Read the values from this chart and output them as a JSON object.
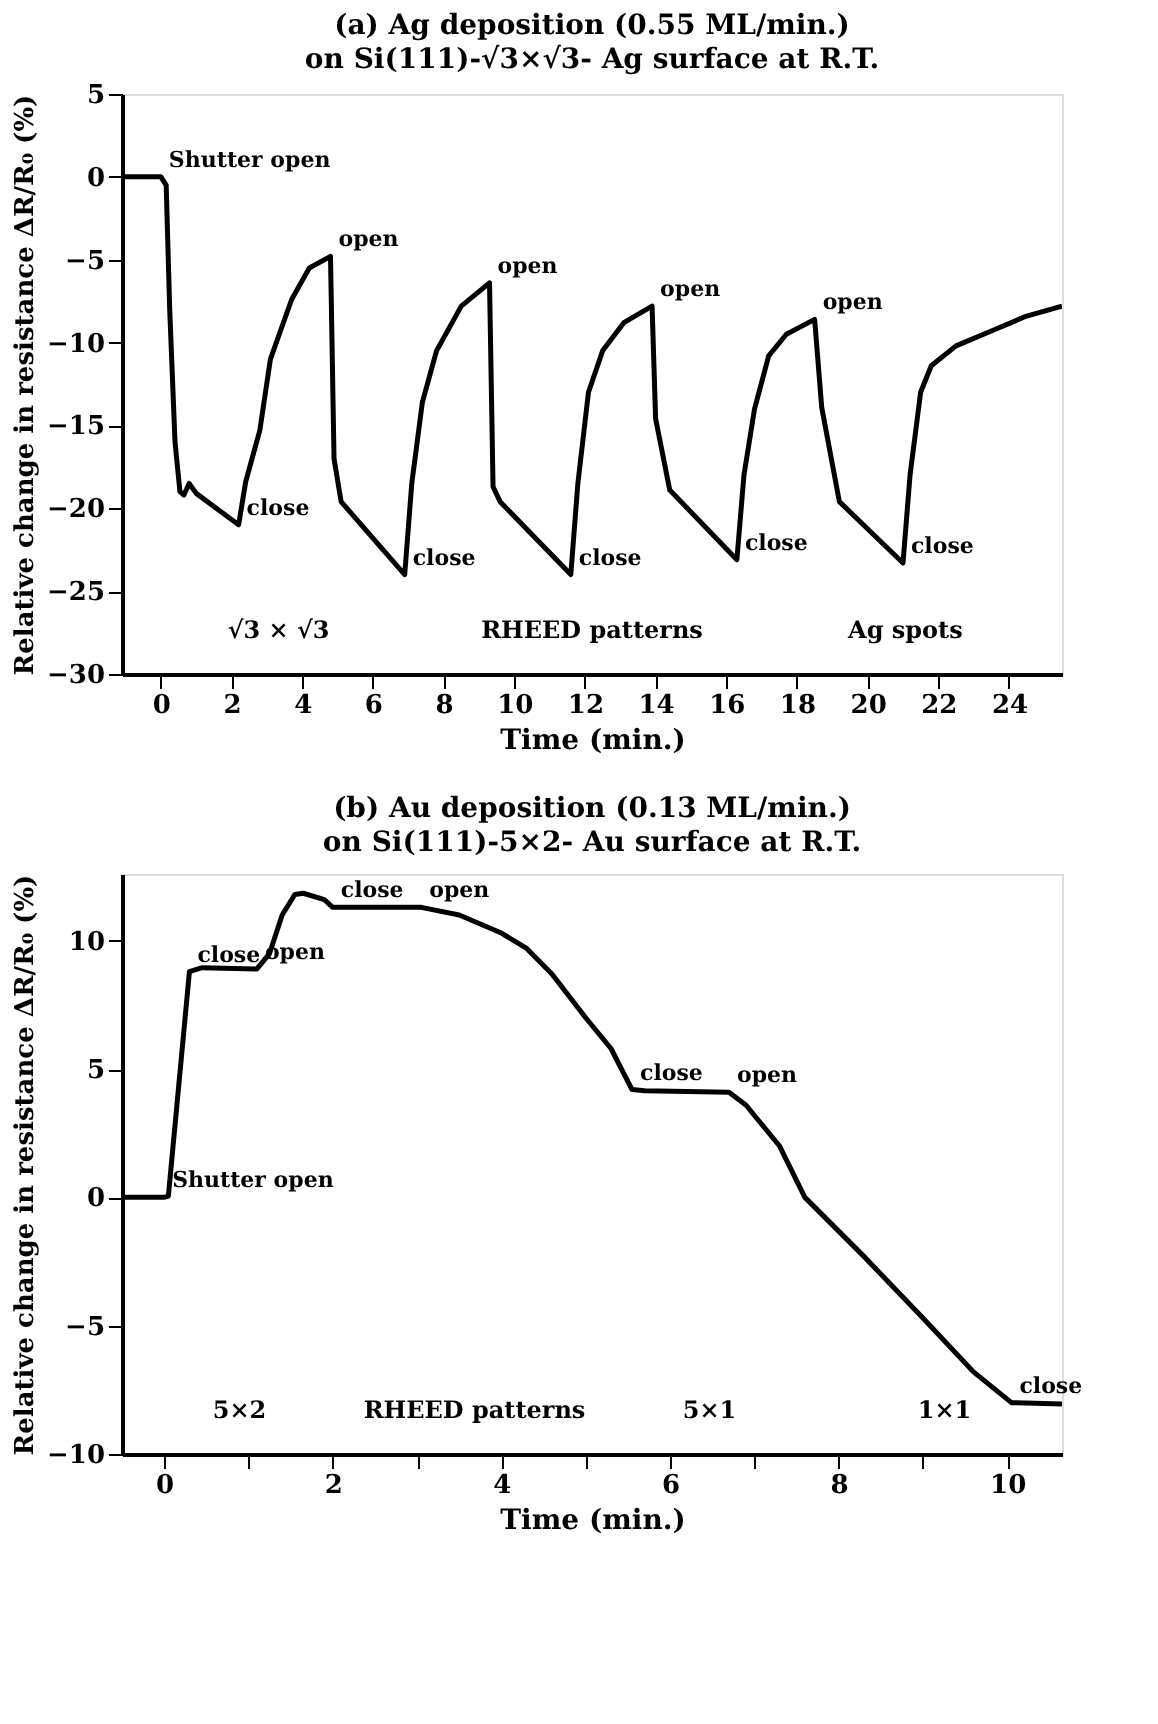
{
  "chart_data": [
    {
      "type": "line",
      "title": "(a) Ag deposition (0.55 ML/min.)",
      "subtitle": "on Si(111)-√3×√3- Ag surface at R.T.",
      "xlabel": "Time (min.)",
      "ylabel": "Relative change in resistance ΔR/R₀   (%)",
      "xlim": [
        -1.1,
        25.5
      ],
      "ylim": [
        -30,
        5
      ],
      "xticks": [
        0,
        2,
        4,
        6,
        8,
        10,
        12,
        14,
        16,
        18,
        20,
        22,
        24
      ],
      "yticks": [
        5,
        0,
        -5,
        -10,
        -15,
        -20,
        -25,
        -30
      ],
      "grid": false,
      "marker": "none",
      "line_style": "solid",
      "series": [
        {
          "color": "#000000",
          "x": [
            -1.1,
            0,
            0.15,
            0.25,
            0.4,
            0.54,
            0.65,
            0.8,
            1.0,
            2.2,
            2.4,
            2.8,
            3.1,
            3.7,
            4.2,
            4.8,
            4.9,
            5.1,
            6.9,
            7.1,
            7.4,
            7.8,
            8.5,
            9.3,
            9.4,
            9.6,
            11.6,
            11.8,
            12.1,
            12.5,
            13.1,
            13.9,
            14.0,
            14.4,
            16.3,
            16.5,
            16.8,
            17.2,
            17.7,
            18.5,
            18.7,
            19.2,
            21.0,
            21.2,
            21.5,
            21.8,
            22.5,
            23.5,
            24.5,
            25.5
          ],
          "values": [
            0,
            0,
            -0.5,
            -8,
            -16,
            -19.0,
            -19.2,
            -18.5,
            -19.1,
            -21.0,
            -18.4,
            -15.3,
            -11.0,
            -7.4,
            -5.5,
            -4.8,
            -17.0,
            -19.6,
            -24.0,
            -18.5,
            -13.6,
            -10.5,
            -7.8,
            -6.4,
            -18.7,
            -19.6,
            -24.0,
            -18.5,
            -13.0,
            -10.5,
            -8.8,
            -7.8,
            -14.6,
            -18.9,
            -23.1,
            -18.0,
            -14.0,
            -10.8,
            -9.5,
            -8.6,
            -13.9,
            -19.6,
            -23.3,
            -18.0,
            -13.0,
            -11.4,
            -10.2,
            -9.3,
            -8.4,
            -7.8
          ]
        }
      ],
      "annotations": [
        {
          "text": "Shutter open",
          "x": 0,
          "y": 0
        },
        {
          "text": "close",
          "x": 2.2,
          "y": -21.0
        },
        {
          "text": "open",
          "x": 4.8,
          "y": -4.8
        },
        {
          "text": "close",
          "x": 6.9,
          "y": -24.0
        },
        {
          "text": "open",
          "x": 9.3,
          "y": -6.4
        },
        {
          "text": "close",
          "x": 11.6,
          "y": -24.0
        },
        {
          "text": "open",
          "x": 13.9,
          "y": -7.8
        },
        {
          "text": "close",
          "x": 16.3,
          "y": -23.1
        },
        {
          "text": "open",
          "x": 18.5,
          "y": -8.6
        },
        {
          "text": "close",
          "x": 21.0,
          "y": -23.3
        },
        "√3 × √3",
        "RHEED patterns",
        "Ag spots"
      ]
    },
    {
      "type": "line",
      "title": "(b) Au deposition (0.13 ML/min.)",
      "subtitle": "on Si(111)-5×2- Au surface at R.T.",
      "xlabel": "Time (min.)",
      "ylabel": "Relative change in resistance ΔR/R₀   (%)",
      "xlim": [
        -0.5,
        10.65
      ],
      "ylim": [
        -10,
        12.6
      ],
      "xticks": [
        0,
        {
          "value": 1,
          "label": null
        },
        2,
        {
          "value": 3,
          "label": null
        },
        4,
        {
          "value": 5,
          "label": null
        },
        6,
        {
          "value": 7,
          "label": null
        },
        8,
        {
          "value": 9,
          "label": null
        },
        10
      ],
      "yticks": [
        -10,
        -5,
        0,
        5,
        10
      ],
      "grid": false,
      "marker": "none",
      "line_style": "solid",
      "series": [
        {
          "color": "#000000",
          "x": [
            -0.5,
            0,
            0.05,
            0.3,
            0.45,
            1.1,
            1.25,
            1.4,
            1.55,
            1.65,
            1.9,
            2.0,
            3.05,
            3.5,
            4.0,
            4.3,
            4.6,
            5.0,
            5.3,
            5.55,
            5.7,
            6.7,
            6.9,
            7.3,
            7.6,
            8.3,
            9.0,
            9.6,
            10.05,
            10.65
          ],
          "values": [
            0,
            0,
            0.05,
            8.8,
            8.95,
            8.9,
            9.5,
            11.0,
            11.8,
            11.85,
            11.6,
            11.3,
            11.3,
            11.0,
            10.3,
            9.7,
            8.7,
            7.0,
            5.8,
            4.2,
            4.15,
            4.1,
            3.6,
            2.0,
            0,
            -2.3,
            -4.7,
            -6.8,
            -8.0,
            -8.05
          ]
        }
      ],
      "annotations": [
        {
          "text": "Shutter open",
          "x": 0,
          "y": 0
        },
        {
          "text": "close",
          "x": 0.3,
          "y": 8.8
        },
        {
          "text": "open",
          "x": 1.1,
          "y": 8.9
        },
        {
          "text": "close",
          "x": 2.0,
          "y": 11.3
        },
        {
          "text": "open",
          "x": 3.05,
          "y": 11.3
        },
        {
          "text": "close",
          "x": 5.55,
          "y": 4.2
        },
        {
          "text": "open",
          "x": 6.7,
          "y": 4.1
        },
        {
          "text": "close",
          "x": 10.05,
          "y": -8.0
        },
        "5×2",
        "RHEED patterns",
        "5×1",
        "1×1"
      ]
    }
  ]
}
